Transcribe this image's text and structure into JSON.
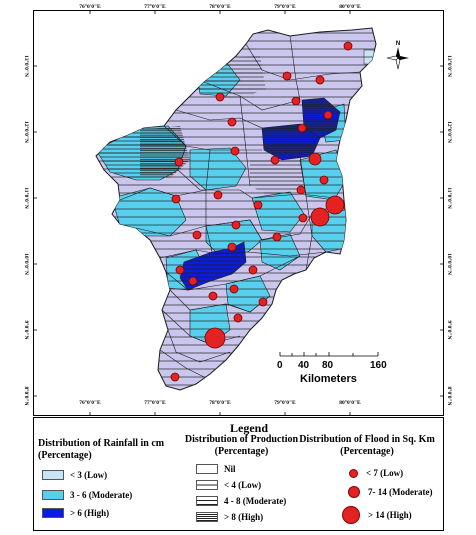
{
  "map": {
    "top_longitudes": [
      "76°0'0\"E",
      "77°0'0\"E",
      "78°0'0\"E",
      "79°0'0\"E",
      "80°0'0\"E"
    ],
    "bottom_longitudes": [
      "76°0'0\"E",
      "77°0'0\"E",
      "78°0'0\"E",
      "79°0'0\"E",
      "80°0'0\"E"
    ],
    "left_latitudes": [
      "13°0'0\"N",
      "12°0'0\"N",
      "11°0'0\"N",
      "10°0'0\"N",
      "9°0'0\"N",
      "8°0'0\"N"
    ],
    "right_latitudes": [
      "13°0'0\"N",
      "12°0'0\"N",
      "11°0'0\"N",
      "10°0'0\"N",
      "9°0'0\"N",
      "8°0'0\"N"
    ],
    "compass_label": "N",
    "scale_bar": {
      "ticks": [
        "0",
        "40",
        "80",
        "160"
      ],
      "unit_label": "Kilometers"
    },
    "colors": {
      "rainfall_low": "#c9e4f4",
      "rainfall_moderate": "#57d0ef",
      "rainfall_high": "#0a1ce0",
      "flood_circle": "#e32222",
      "base_region": "#cbc6ee"
    }
  },
  "legend": {
    "title": "Legend",
    "rainfall": {
      "heading": "Distribution of Rainfall in cm (Percentage)",
      "items": [
        {
          "label": "< 3 (Low)",
          "color": "#c9e4f4"
        },
        {
          "label": "3 - 6 (Moderate)",
          "color": "#57d0ef"
        },
        {
          "label": "> 6 (High)",
          "color": "#0a1ce0"
        }
      ]
    },
    "production": {
      "heading": "Distribution of Production (Percentage)",
      "items": [
        {
          "label": "Nil",
          "pattern": "none"
        },
        {
          "label": "< 4 (Low)",
          "pattern": "sparse"
        },
        {
          "label": "4 - 8 (Moderate)",
          "pattern": "medium"
        },
        {
          "label": "> 8 (High)",
          "pattern": "dense"
        }
      ]
    },
    "flood": {
      "heading": "Distribution of Flood in Sq. Km (Percentage)",
      "items": [
        {
          "label": "< 7 (Low)",
          "size": "small"
        },
        {
          "label": "7- 14 (Moderate)",
          "size": "medium"
        },
        {
          "label": "> 14 (High)",
          "size": "large"
        }
      ]
    }
  }
}
